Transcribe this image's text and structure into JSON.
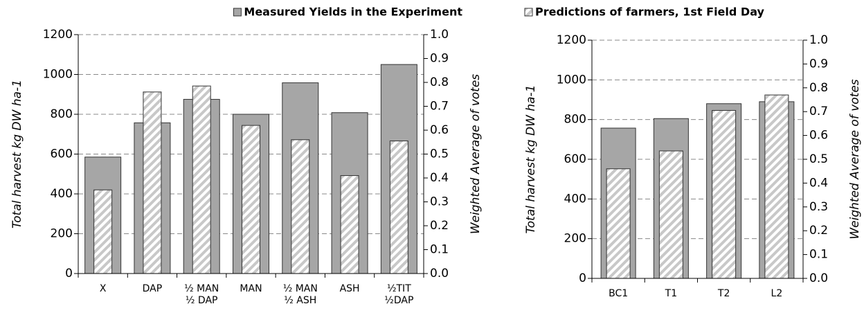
{
  "chart_data": [
    {
      "type": "bar",
      "categories": [
        "X",
        "DAP",
        "½ MAN\n½ DAP",
        "MAN",
        "½ MAN\n½ ASH",
        "ASH",
        "½TIT\n½DAP"
      ],
      "series": [
        {
          "name": "Measured Yields in the Experiment",
          "color": "#a6a6a6",
          "values": [
            585,
            757,
            875,
            800,
            958,
            808,
            1050
          ]
        },
        {
          "color": "#a6a6a6",
          "pattern": "hatch",
          "axis": "y2",
          "values": [
            0.35,
            0.76,
            0.785,
            0.62,
            0.56,
            0.41,
            0.555
          ]
        }
      ],
      "ylabel": "Total harvest kg DW ha-1",
      "y2label": "Weighted Average of votes",
      "ylim": [
        0,
        1200
      ],
      "yticks": [
        0,
        200,
        400,
        600,
        800,
        1000,
        1200
      ],
      "y2lim": [
        0,
        1
      ],
      "y2ticks": [
        {
          "value": 0,
          "label": "0.0"
        },
        0.1,
        0.2,
        0.3,
        0.4,
        0.5,
        0.6,
        0.7,
        0.8,
        0.9,
        {
          "value": 1,
          "label": "1.0"
        }
      ],
      "grid": true
    },
    {
      "type": "bar",
      "categories": [
        "BC1",
        "T1",
        "T2",
        "L2"
      ],
      "series": [
        {
          "color": "#a6a6a6",
          "values": [
            757,
            805,
            880,
            890
          ]
        },
        {
          "name": "Predictions of farmers, 1st Field Day",
          "color": "#a6a6a6",
          "pattern": "hatch",
          "axis": "y2",
          "values": [
            0.46,
            0.535,
            0.705,
            0.77
          ]
        }
      ],
      "ylabel": "Total harvest kg DW ha-1",
      "y2label": "Weighted Average of votes",
      "ylim": [
        0,
        1200
      ],
      "yticks": [
        0,
        200,
        400,
        600,
        800,
        1000,
        1200
      ],
      "y2lim": [
        0,
        1
      ],
      "y2ticks": [
        {
          "value": 0,
          "label": "0.0"
        },
        0.1,
        0.2,
        0.3,
        0.4,
        0.5,
        0.6,
        0.7,
        0.8,
        0.9,
        {
          "value": 1,
          "label": "1.0"
        }
      ],
      "grid": true
    }
  ]
}
